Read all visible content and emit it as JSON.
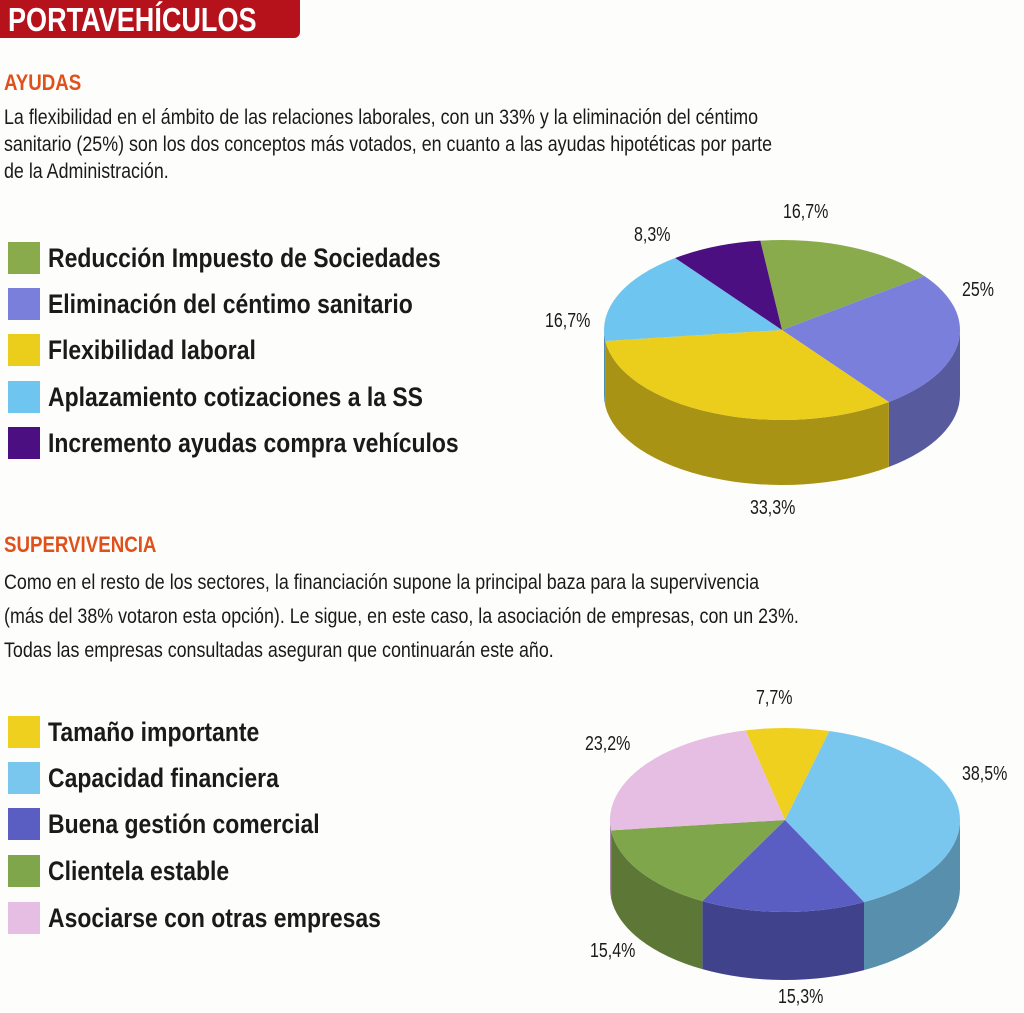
{
  "header": {
    "title": "PORTAVEHÍCULOS",
    "color": "#b5121b"
  },
  "sections": [
    {
      "title": "AYUDAS",
      "paragraph": [
        "La flexibilidad en el ámbito de las relaciones laborales, con un 33% y la eliminación del céntimo",
        "sanitario (25%) son los dos conceptos más votados, en cuanto a las ayudas hipotéticas por parte",
        "de la Administración."
      ]
    },
    {
      "title": "SUPERVIVENCIA",
      "paragraph": [
        "Como en el resto de los sectores, la financiación supone la principal baza para la supervivencia",
        "(más del 38% votaron esta opción).  Le sigue, en este caso, la asociación de empresas, con un 23%.",
        "Todas las empresas consultadas aseguran que continuarán este año."
      ]
    }
  ],
  "chart_data": [
    {
      "type": "pie",
      "style": "3d",
      "legend": "left",
      "legend_order": [
        "Reducción Impuesto de Sociedades",
        "Eliminación del céntimo sanitario",
        "Flexibilidad laboral",
        "Aplazamiento cotizaciones a la SS",
        "Incremento ayudas compra vehículos"
      ],
      "slices": [
        {
          "name": "Reducción Impuesto de Sociedades",
          "value": 16.7,
          "label": "16,7%",
          "color": "#8aab4c"
        },
        {
          "name": "Eliminación del céntimo sanitario",
          "value": 25,
          "label": "25%",
          "color": "#7a7fdc"
        },
        {
          "name": "Flexibilidad laboral",
          "value": 33.3,
          "label": "33,3%",
          "color": "#ebcd1c"
        },
        {
          "name": "Aplazamiento cotizaciones a la SS",
          "value": 16.7,
          "label": "16,7%",
          "color": "#6ec5f0"
        },
        {
          "name": "Incremento ayudas compra vehículos",
          "value": 8.3,
          "label": "8,3%",
          "color": "#4c0f82"
        }
      ]
    },
    {
      "type": "pie",
      "style": "3d",
      "legend": "left",
      "legend_order": [
        "Tamaño importante",
        "Capacidad financiera",
        "Buena gestión comercial",
        "Clientela estable",
        "Asociarse con otras empresas"
      ],
      "slices": [
        {
          "name": "Tamaño importante",
          "value": 7.7,
          "label": "7,7%",
          "color": "#efd01e"
        },
        {
          "name": "Capacidad financiera",
          "value": 38.5,
          "label": "38,5%",
          "color": "#79c7ef"
        },
        {
          "name": "Buena gestión comercial",
          "value": 15.3,
          "label": "15,3%",
          "color": "#5a5dc2"
        },
        {
          "name": "Clientela estable",
          "value": 15.4,
          "label": "15,4%",
          "color": "#80a64b"
        },
        {
          "name": "Asociarse con otras empresas",
          "value": 23.2,
          "label": "23,2%",
          "color": "#e6bde3"
        }
      ]
    }
  ]
}
